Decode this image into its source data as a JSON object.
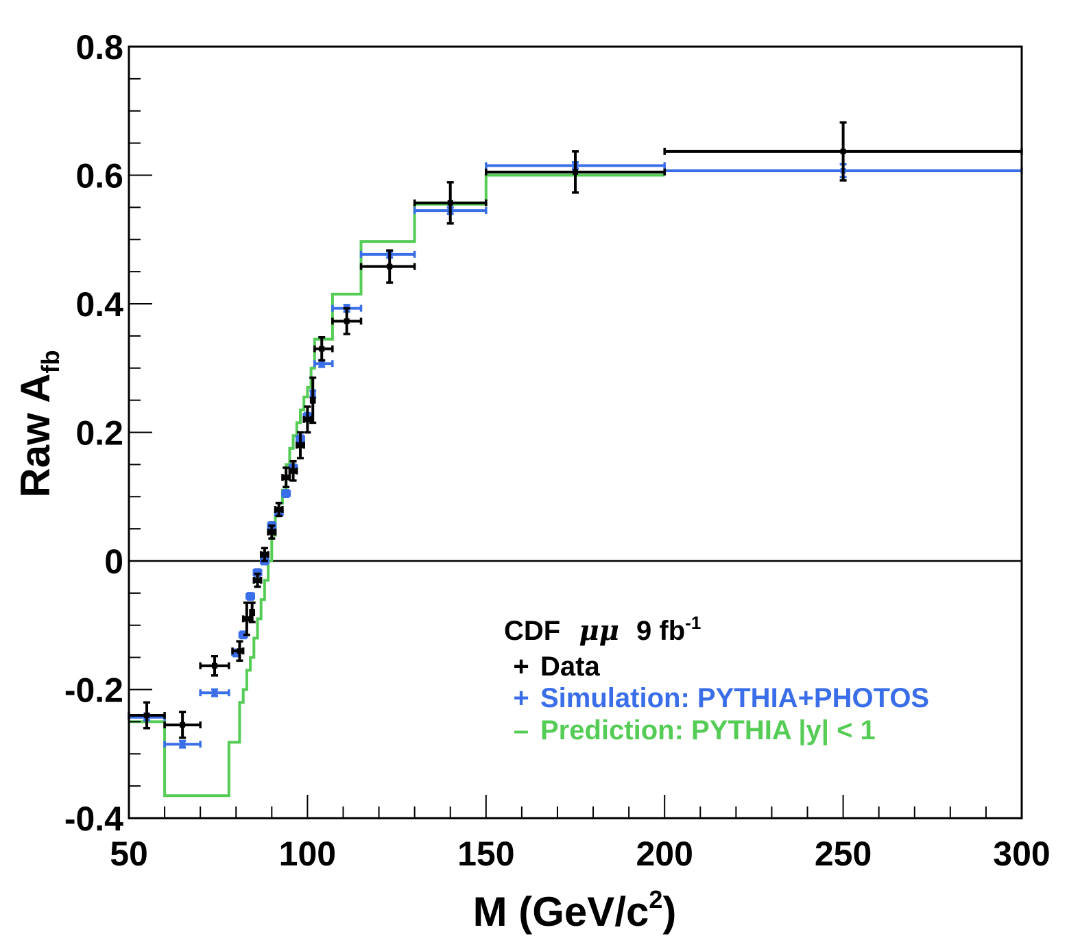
{
  "chart_data": {
    "type": "step-line-with-errorbars",
    "title": "",
    "xlabel": {
      "main": "M  (GeV/c",
      "sup": "2",
      "close": ")"
    },
    "ylabel": {
      "main": "Raw A",
      "sub": "fb"
    },
    "xlim": [
      50,
      300
    ],
    "ylim": [
      -0.4,
      0.8
    ],
    "x_ticks": [
      "50",
      "100",
      "150",
      "200",
      "250",
      "300"
    ],
    "y_ticks": [
      "-0.4",
      "-0.2",
      "0",
      "0.2",
      "0.4",
      "0.6",
      "0.8"
    ],
    "zero_line": true,
    "legend": {
      "header_prefix": "CDF",
      "header_greek": "μμ",
      "header_lumi": "9 fb",
      "header_sup": "-1",
      "position": "lower-right",
      "entries": [
        {
          "marker": "+",
          "label": "Data",
          "color": "#000000"
        },
        {
          "marker": "+",
          "label": "Simulation: PYTHIA+PHOTOS",
          "color": "#3a6ee8"
        },
        {
          "marker": "–",
          "label": "Prediction: PYTHIA |y| < 1",
          "color": "#55cc55"
        }
      ]
    },
    "series": [
      {
        "name": "Data",
        "color": "#000000",
        "points": [
          {
            "x": 55,
            "xlo": 50,
            "xhi": 60,
            "y": -0.24,
            "yerr": 0.02
          },
          {
            "x": 65,
            "xlo": 60,
            "xhi": 70,
            "y": -0.255,
            "yerr": 0.02
          },
          {
            "x": 74,
            "xlo": 70,
            "xhi": 78,
            "y": -0.163,
            "yerr": 0.015
          },
          {
            "x": 81,
            "xlo": 79,
            "xhi": 82,
            "y": -0.14,
            "yerr": 0.015
          },
          {
            "x": 83,
            "xlo": 82,
            "xhi": 84,
            "y": -0.09,
            "yerr": 0.025
          },
          {
            "x": 84.5,
            "xlo": 84,
            "xhi": 85,
            "y": -0.08,
            "yerr": 0.015
          },
          {
            "x": 86,
            "xlo": 85,
            "xhi": 87,
            "y": -0.03,
            "yerr": 0.01
          },
          {
            "x": 88,
            "xlo": 87,
            "xhi": 89,
            "y": 0.01,
            "yerr": 0.01
          },
          {
            "x": 90,
            "xlo": 89,
            "xhi": 91,
            "y": 0.045,
            "yerr": 0.01
          },
          {
            "x": 92,
            "xlo": 91,
            "xhi": 93,
            "y": 0.08,
            "yerr": 0.01
          },
          {
            "x": 94,
            "xlo": 93,
            "xhi": 95,
            "y": 0.13,
            "yerr": 0.015
          },
          {
            "x": 96,
            "xlo": 95,
            "xhi": 97,
            "y": 0.14,
            "yerr": 0.015
          },
          {
            "x": 98,
            "xlo": 97,
            "xhi": 99,
            "y": 0.18,
            "yerr": 0.02
          },
          {
            "x": 100,
            "xlo": 99,
            "xhi": 101,
            "y": 0.22,
            "yerr": 0.02
          },
          {
            "x": 101.5,
            "xlo": 101,
            "xhi": 102,
            "y": 0.25,
            "yerr": 0.035
          },
          {
            "x": 104,
            "xlo": 102,
            "xhi": 107,
            "y": 0.33,
            "yerr": 0.018
          },
          {
            "x": 111,
            "xlo": 107,
            "xhi": 115,
            "y": 0.373,
            "yerr": 0.02
          },
          {
            "x": 123,
            "xlo": 115,
            "xhi": 130,
            "y": 0.458,
            "yerr": 0.025
          },
          {
            "x": 140,
            "xlo": 130,
            "xhi": 150,
            "y": 0.557,
            "yerr": 0.032
          },
          {
            "x": 175,
            "xlo": 150,
            "xhi": 200,
            "y": 0.605,
            "yerr": 0.032
          },
          {
            "x": 250,
            "xlo": 200,
            "xhi": 300,
            "y": 0.637,
            "yerr": 0.045
          }
        ]
      },
      {
        "name": "Simulation: PYTHIA+PHOTOS",
        "color": "#3a6ee8",
        "points": [
          {
            "x": 55,
            "xlo": 50,
            "xhi": 60,
            "y": -0.243,
            "yerr": 0.005
          },
          {
            "x": 65,
            "xlo": 60,
            "xhi": 70,
            "y": -0.285,
            "yerr": 0.005
          },
          {
            "x": 74,
            "xlo": 70,
            "xhi": 78,
            "y": -0.205,
            "yerr": 0.005
          },
          {
            "x": 80,
            "xlo": 79,
            "xhi": 81,
            "y": -0.143,
            "yerr": 0.005
          },
          {
            "x": 82,
            "xlo": 81,
            "xhi": 83,
            "y": -0.115,
            "yerr": 0.005
          },
          {
            "x": 84,
            "xlo": 83,
            "xhi": 85,
            "y": -0.055,
            "yerr": 0.005
          },
          {
            "x": 86,
            "xlo": 85,
            "xhi": 87,
            "y": -0.018,
            "yerr": 0.005
          },
          {
            "x": 88,
            "xlo": 87,
            "xhi": 89,
            "y": 0.0,
            "yerr": 0.005
          },
          {
            "x": 90,
            "xlo": 89,
            "xhi": 91,
            "y": 0.055,
            "yerr": 0.005
          },
          {
            "x": 92,
            "xlo": 91,
            "xhi": 93,
            "y": 0.075,
            "yerr": 0.005
          },
          {
            "x": 94,
            "xlo": 93,
            "xhi": 95,
            "y": 0.105,
            "yerr": 0.005
          },
          {
            "x": 96,
            "xlo": 95,
            "xhi": 97,
            "y": 0.145,
            "yerr": 0.005
          },
          {
            "x": 98,
            "xlo": 97,
            "xhi": 99,
            "y": 0.19,
            "yerr": 0.005
          },
          {
            "x": 100,
            "xlo": 99,
            "xhi": 101,
            "y": 0.225,
            "yerr": 0.005
          },
          {
            "x": 101.5,
            "xlo": 101,
            "xhi": 102,
            "y": 0.26,
            "yerr": 0.005
          },
          {
            "x": 104,
            "xlo": 102,
            "xhi": 107,
            "y": 0.307,
            "yerr": 0.005
          },
          {
            "x": 111,
            "xlo": 107,
            "xhi": 115,
            "y": 0.393,
            "yerr": 0.005
          },
          {
            "x": 123,
            "xlo": 115,
            "xhi": 130,
            "y": 0.477,
            "yerr": 0.005
          },
          {
            "x": 140,
            "xlo": 130,
            "xhi": 150,
            "y": 0.545,
            "yerr": 0.005
          },
          {
            "x": 175,
            "xlo": 150,
            "xhi": 200,
            "y": 0.615,
            "yerr": 0.005
          },
          {
            "x": 250,
            "xlo": 200,
            "xhi": 300,
            "y": 0.607,
            "yerr": 0.01
          }
        ]
      },
      {
        "name": "Prediction: PYTHIA |y| < 1",
        "color": "#55cc55",
        "bins": [
          {
            "xlo": 50,
            "xhi": 60,
            "y": -0.25
          },
          {
            "xlo": 60,
            "xhi": 78,
            "y": -0.365
          },
          {
            "xlo": 78,
            "xhi": 81,
            "y": -0.282
          },
          {
            "xlo": 81,
            "xhi": 82,
            "y": -0.22
          },
          {
            "xlo": 82,
            "xhi": 83,
            "y": -0.2
          },
          {
            "xlo": 83,
            "xhi": 84,
            "y": -0.17
          },
          {
            "xlo": 84,
            "xhi": 85,
            "y": -0.15
          },
          {
            "xlo": 85,
            "xhi": 86,
            "y": -0.12
          },
          {
            "xlo": 86,
            "xhi": 87,
            "y": -0.09
          },
          {
            "xlo": 87,
            "xhi": 88,
            "y": -0.06
          },
          {
            "xlo": 88,
            "xhi": 89,
            "y": -0.03
          },
          {
            "xlo": 89,
            "xhi": 90,
            "y": 0.0
          },
          {
            "xlo": 90,
            "xhi": 91,
            "y": 0.04
          },
          {
            "xlo": 91,
            "xhi": 92,
            "y": 0.07
          },
          {
            "xlo": 92,
            "xhi": 93,
            "y": 0.09
          },
          {
            "xlo": 93,
            "xhi": 94,
            "y": 0.11
          },
          {
            "xlo": 94,
            "xhi": 95,
            "y": 0.15
          },
          {
            "xlo": 95,
            "xhi": 96,
            "y": 0.175
          },
          {
            "xlo": 96,
            "xhi": 97,
            "y": 0.195
          },
          {
            "xlo": 97,
            "xhi": 98,
            "y": 0.215
          },
          {
            "xlo": 98,
            "xhi": 99,
            "y": 0.235
          },
          {
            "xlo": 99,
            "xhi": 100,
            "y": 0.255
          },
          {
            "xlo": 100,
            "xhi": 101,
            "y": 0.27
          },
          {
            "xlo": 101,
            "xhi": 102,
            "y": 0.3
          },
          {
            "xlo": 102,
            "xhi": 107,
            "y": 0.345
          },
          {
            "xlo": 107,
            "xhi": 115,
            "y": 0.415
          },
          {
            "xlo": 115,
            "xhi": 130,
            "y": 0.497
          },
          {
            "xlo": 130,
            "xhi": 150,
            "y": 0.555
          },
          {
            "xlo": 150,
            "xhi": 200,
            "y": 0.6
          }
        ]
      }
    ]
  }
}
